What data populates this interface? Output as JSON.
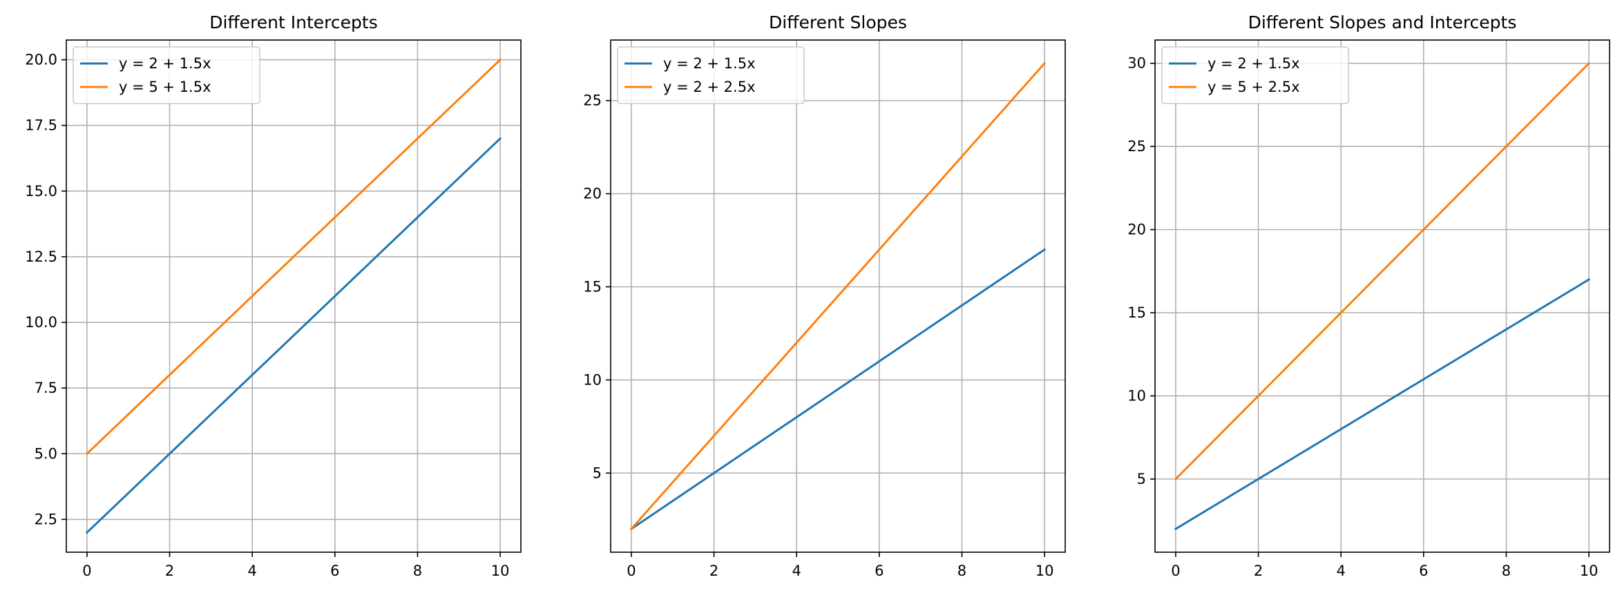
{
  "chart_data": [
    {
      "type": "line",
      "title": "Different Intercepts",
      "xlabel": "",
      "ylabel": "",
      "xlim": [
        -0.5,
        10.5
      ],
      "ylim": [
        1.25,
        20.75
      ],
      "xticks": [
        0,
        2,
        4,
        6,
        8,
        10
      ],
      "xtick_labels": [
        "0",
        "2",
        "4",
        "6",
        "8",
        "10"
      ],
      "yticks": [
        2.5,
        5.0,
        7.5,
        10.0,
        12.5,
        15.0,
        17.5,
        20.0
      ],
      "ytick_labels": [
        "2.5",
        "5.0",
        "7.5",
        "10.0",
        "12.5",
        "15.0",
        "17.5",
        "20.0"
      ],
      "grid": true,
      "legend": "upper-left",
      "x": [
        0,
        10
      ],
      "series": [
        {
          "name": "y = 2 + 1.5x",
          "color": "#1f77b4",
          "values": [
            2,
            17
          ]
        },
        {
          "name": "y = 5 + 1.5x",
          "color": "#ff7f0e",
          "values": [
            5,
            20
          ]
        }
      ]
    },
    {
      "type": "line",
      "title": "Different Slopes",
      "xlabel": "",
      "ylabel": "",
      "xlim": [
        -0.5,
        10.5
      ],
      "ylim": [
        0.75,
        28.25
      ],
      "xticks": [
        0,
        2,
        4,
        6,
        8,
        10
      ],
      "xtick_labels": [
        "0",
        "2",
        "4",
        "6",
        "8",
        "10"
      ],
      "yticks": [
        5,
        10,
        15,
        20,
        25
      ],
      "ytick_labels": [
        "5",
        "10",
        "15",
        "20",
        "25"
      ],
      "grid": true,
      "legend": "upper-left",
      "x": [
        0,
        10
      ],
      "series": [
        {
          "name": "y = 2 + 1.5x",
          "color": "#1f77b4",
          "values": [
            2,
            17
          ]
        },
        {
          "name": "y = 2 + 2.5x",
          "color": "#ff7f0e",
          "values": [
            2,
            27
          ]
        }
      ]
    },
    {
      "type": "line",
      "title": "Different Slopes and Intercepts",
      "xlabel": "",
      "ylabel": "",
      "xlim": [
        -0.5,
        10.5
      ],
      "ylim": [
        0.6,
        31.4
      ],
      "xticks": [
        0,
        2,
        4,
        6,
        8,
        10
      ],
      "xtick_labels": [
        "0",
        "2",
        "4",
        "6",
        "8",
        "10"
      ],
      "yticks": [
        5,
        10,
        15,
        20,
        25,
        30
      ],
      "ytick_labels": [
        "5",
        "10",
        "15",
        "20",
        "25",
        "30"
      ],
      "grid": true,
      "legend": "upper-left",
      "x": [
        0,
        10
      ],
      "series": [
        {
          "name": "y = 2 + 1.5x",
          "color": "#1f77b4",
          "values": [
            2,
            17
          ]
        },
        {
          "name": "y = 5 + 2.5x",
          "color": "#ff7f0e",
          "values": [
            5,
            30
          ]
        }
      ]
    }
  ]
}
